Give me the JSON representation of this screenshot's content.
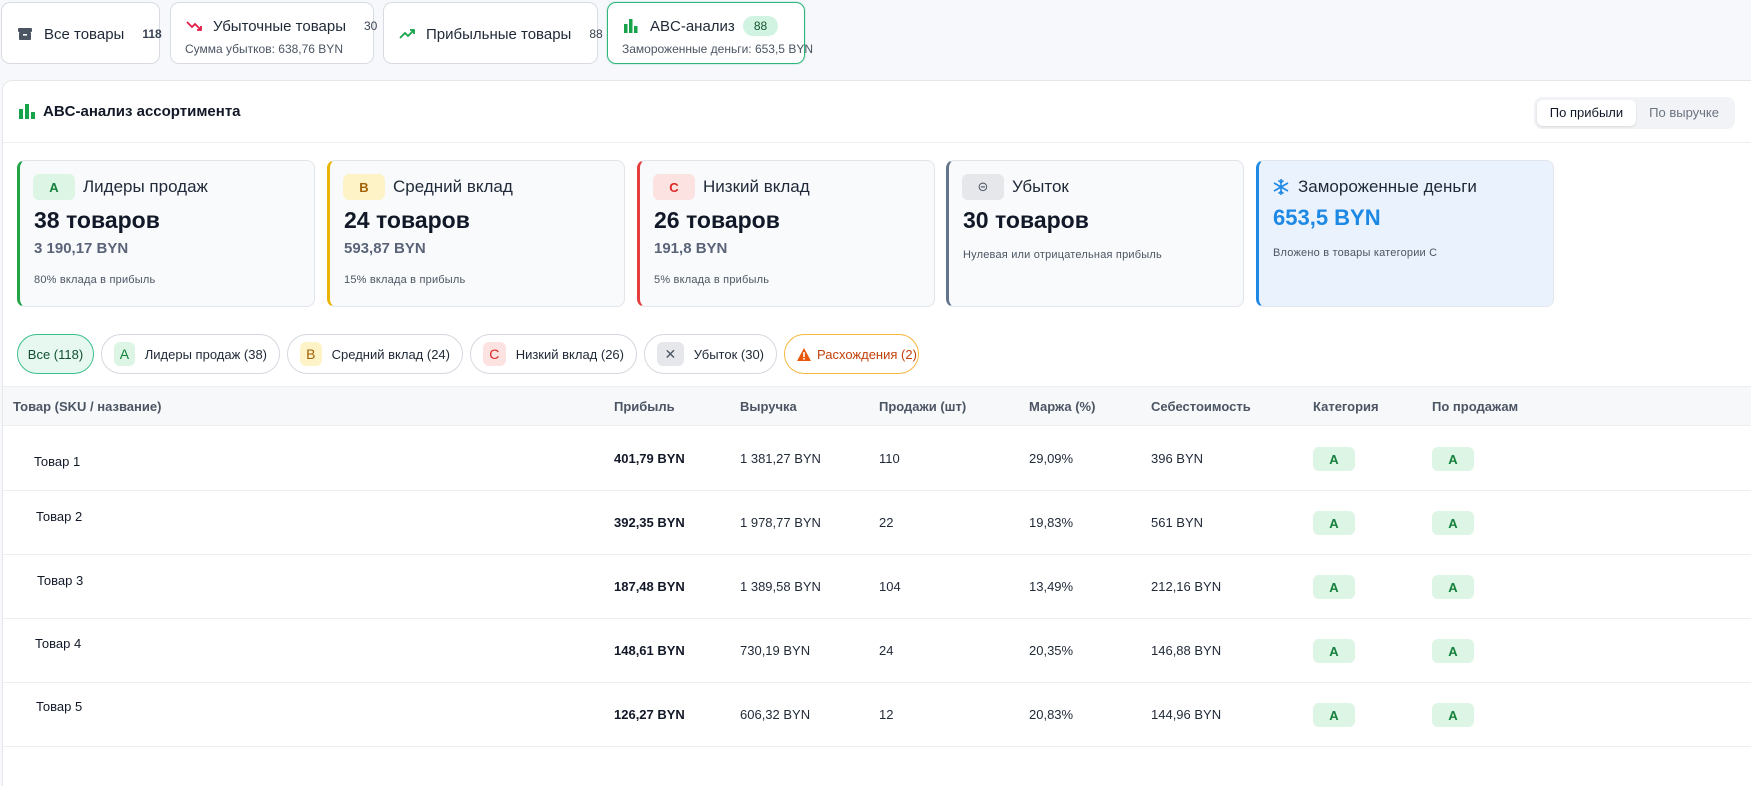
{
  "tabs": [
    {
      "label": "Все товары",
      "count": "118",
      "icon": "archive-icon"
    },
    {
      "label": "Убыточные товары",
      "count": "30",
      "sub": "Сумма убытков: 638,76 BYN",
      "icon": "trend-down-icon"
    },
    {
      "label": "Прибыльные товары",
      "count": "88",
      "icon": "trend-up-icon"
    },
    {
      "label": "ABC-анализ",
      "count": "88",
      "sub": "Замороженные деньги: 653,5 BYN",
      "icon": "bar-chart-icon",
      "active": true
    }
  ],
  "panel": {
    "title": "ABC-анализ ассортимента",
    "toggle": {
      "by_profit": "По прибыли",
      "by_revenue": "По выручке",
      "selected": "По прибыли"
    }
  },
  "cards": [
    {
      "badge": "A",
      "title": "Лидеры продаж",
      "count": "38 товаров",
      "amount": "3 190,17 BYN",
      "note": "80% вклада в прибыль",
      "color": "#22a447"
    },
    {
      "badge": "B",
      "title": "Средний вклад",
      "count": "24 товаров",
      "amount": "593,87 BYN",
      "note": "15% вклада в прибыль",
      "color": "#eab308"
    },
    {
      "badge": "C",
      "title": "Низкий вклад",
      "count": "26 товаров",
      "amount": "191,8 BYN",
      "note": "5% вклада в прибыль",
      "color": "#e53e3e"
    },
    {
      "badge": "⊝",
      "title": "Убыток",
      "count": "30 товаров",
      "note": "Нулевая или отрицательная прибыль",
      "color": "#64748b"
    },
    {
      "title": "Замороженные деньги",
      "amount": "653,5 BYN",
      "note": "Вложено в товары категории C",
      "color": "#1e88e5",
      "icon": "snowflake-icon"
    }
  ],
  "filters": [
    {
      "label": "Все (118)",
      "active": true
    },
    {
      "badge": "A",
      "label": "Лидеры продаж (38)"
    },
    {
      "badge": "B",
      "label": "Средний вклад (24)"
    },
    {
      "badge": "C",
      "label": "Низкий вклад (26)"
    },
    {
      "badge": "✕",
      "label": "Убыток (30)"
    },
    {
      "label": "Расхождения (2)",
      "icon": "warning-icon"
    }
  ],
  "table": {
    "columns": [
      "Товар (SKU / название)",
      "Прибыль",
      "Выручка",
      "Продажи (шт)",
      "Маржа (%)",
      "Себестоимость",
      "Категория",
      "По продажам"
    ],
    "rows": [
      {
        "name": "Товар 1",
        "profit": "401,79 BYN",
        "revenue": "1 381,27 BYN",
        "sales": "110",
        "margin": "29,09%",
        "cost": "396 BYN",
        "category": "A",
        "by_sales": "A"
      },
      {
        "name": "Товар 2",
        "profit": "392,35 BYN",
        "revenue": "1 978,77 BYN",
        "sales": "22",
        "margin": "19,83%",
        "cost": "561 BYN",
        "category": "A",
        "by_sales": "A"
      },
      {
        "name": "Товар 3",
        "profit": "187,48 BYN",
        "revenue": "1 389,58 BYN",
        "sales": "104",
        "margin": "13,49%",
        "cost": "212,16 BYN",
        "category": "A",
        "by_sales": "A"
      },
      {
        "name": "Товар 4",
        "profit": "148,61 BYN",
        "revenue": "730,19 BYN",
        "sales": "24",
        "margin": "20,35%",
        "cost": "146,88 BYN",
        "category": "A",
        "by_sales": "A"
      },
      {
        "name": "Товар 5",
        "profit": "126,27 BYN",
        "revenue": "606,32 BYN",
        "sales": "12",
        "margin": "20,83%",
        "cost": "144,96 BYN",
        "category": "A",
        "by_sales": "A"
      }
    ]
  }
}
